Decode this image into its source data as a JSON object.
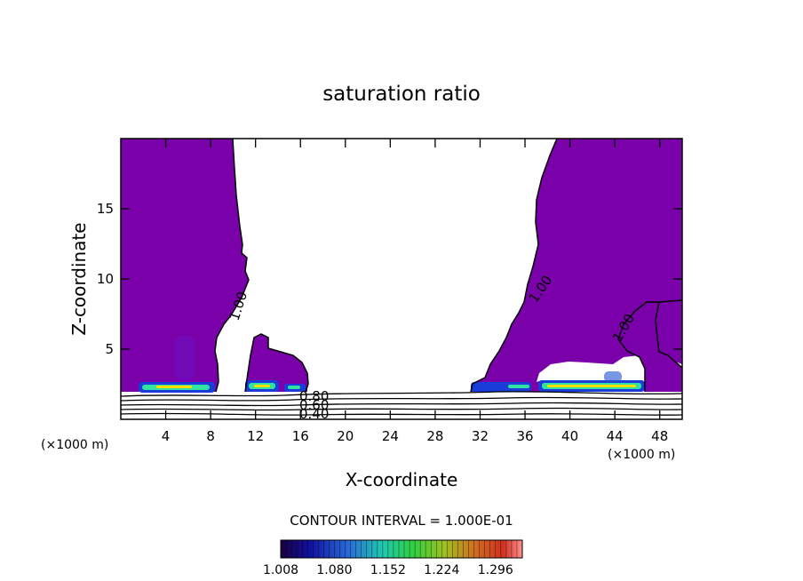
{
  "chart_data": {
    "type": "contour",
    "title": "saturation ratio",
    "xlabel": "X-coordinate",
    "ylabel": "Z-coordinate",
    "x_unit_left": "(×1000 m)",
    "x_unit_right": "(×1000 m)",
    "xlim": [
      0,
      50
    ],
    "ylim": [
      0,
      20
    ],
    "x_ticks": [
      4,
      8,
      12,
      16,
      20,
      24,
      28,
      32,
      36,
      40,
      44,
      48
    ],
    "y_ticks": [
      5,
      10,
      15
    ],
    "contour_labels": [
      {
        "text": "1.00",
        "x": 9.9,
        "z": 8.0
      },
      {
        "text": "1.00",
        "x": 37.4,
        "z": 9.6
      },
      {
        "text": "1.00",
        "x": 45.3,
        "z": 6.4
      },
      {
        "text": "0.80",
        "x": 17.5,
        "z": 1.6
      },
      {
        "text": "0.60",
        "x": 17.5,
        "z": 1.1
      },
      {
        "text": "0.40",
        "x": 17.5,
        "z": 0.5
      }
    ],
    "stable_contours": [
      0.4,
      0.5,
      0.6,
      0.7,
      0.8
    ],
    "contour_interval": "CONTOUR INTERVAL = 1.000E-01",
    "colorbar": {
      "tick_labels": [
        "1.008",
        "1.080",
        "1.152",
        "1.224",
        "1.296"
      ],
      "min": 1.008,
      "max": 1.332
    },
    "colors": {
      "supersaturated_fill": "#7a00aa",
      "cloud_base_low": "#1a3cd8",
      "cloud_base_mid": "#31e3a0",
      "cloud_base_high": "#ffe000"
    }
  }
}
